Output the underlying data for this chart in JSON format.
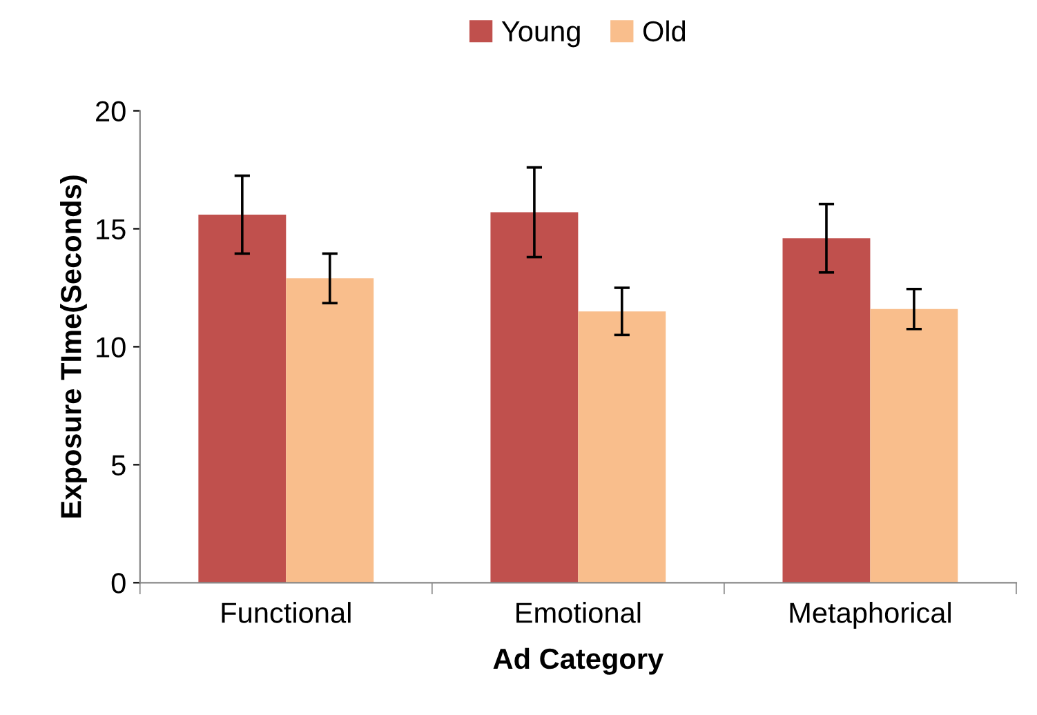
{
  "chart_data": {
    "type": "bar",
    "xlabel": "Ad Category",
    "ylabel": "Exposure TIme(Seconds)",
    "categories": [
      "Functional",
      "Emotional",
      "Metaphorical"
    ],
    "series": [
      {
        "name": "Young",
        "color": "#c0504d",
        "values": [
          15.6,
          15.7,
          14.6
        ],
        "errors": [
          1.65,
          1.9,
          1.45
        ]
      },
      {
        "name": "Old",
        "color": "#f9be8c",
        "values": [
          12.9,
          11.5,
          11.6
        ],
        "errors": [
          1.05,
          1.0,
          0.85
        ]
      }
    ],
    "ylim": [
      0,
      20
    ],
    "yticks": [
      0,
      5,
      10,
      15,
      20
    ],
    "grid": false,
    "legend": "top"
  }
}
